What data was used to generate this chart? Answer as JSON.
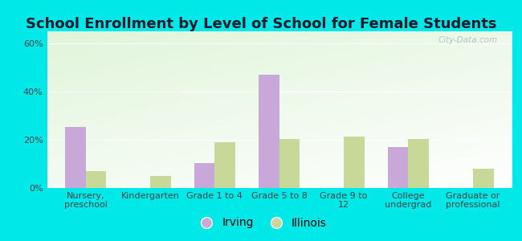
{
  "title": "School Enrollment by Level of School for Female Students",
  "categories": [
    "Nursery,\npreschool",
    "Kindergarten",
    "Grade 1 to 4",
    "Grade 5 to 8",
    "Grade 9 to\n12",
    "College\nundergrad",
    "Graduate or\nprofessional"
  ],
  "irving": [
    25.5,
    0.0,
    10.5,
    47.0,
    0.0,
    17.0,
    0.0
  ],
  "illinois": [
    7.0,
    5.0,
    19.0,
    20.5,
    21.5,
    20.5,
    8.0
  ],
  "irving_color": "#c8a8d8",
  "illinois_color": "#c8d898",
  "bg_color": "#00e8e8",
  "ylabel_ticks": [
    "0%",
    "20%",
    "40%",
    "60%"
  ],
  "ytick_vals": [
    0,
    20,
    40,
    60
  ],
  "ylim": [
    0,
    65
  ],
  "legend_labels": [
    "Irving",
    "Illinois"
  ],
  "bar_width": 0.32,
  "title_fontsize": 13,
  "tick_fontsize": 8,
  "legend_fontsize": 10
}
